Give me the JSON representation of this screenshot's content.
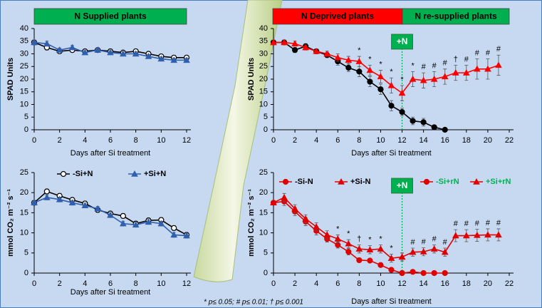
{
  "chart_data": [
    {
      "type": "line",
      "ylabel": "SPAD Units",
      "xlabel": "Days after Si treatment",
      "xlim": [
        0,
        12
      ],
      "xticks": [
        0,
        2,
        4,
        6,
        8,
        10,
        12
      ],
      "ylim": [
        0,
        40
      ],
      "yticks": [
        0,
        5,
        10,
        15,
        20,
        25,
        30,
        35,
        40
      ],
      "grid": false,
      "banners": [
        {
          "text": "N Supplied plants",
          "color": "#00b050"
        }
      ],
      "series": [
        {
          "color": "#000000",
          "marker": "circle",
          "marker_fill": "#ffffff",
          "x": [
            0,
            1,
            2,
            3,
            4,
            5,
            6,
            7,
            8,
            9,
            10,
            11,
            12
          ],
          "values": [
            34.5,
            32.5,
            31,
            31.5,
            31,
            31.5,
            31,
            30.5,
            31,
            30,
            29,
            28.5,
            28.5
          ],
          "errors": [
            1,
            1,
            0.8,
            0.8,
            0.8,
            0.8,
            0.8,
            0.8,
            0.8,
            0.8,
            0.8,
            0.8,
            0.8
          ]
        },
        {
          "color": "#2e5fb0",
          "marker": "triangle",
          "marker_fill": "#2e5fb0",
          "x": [
            0,
            1,
            2,
            3,
            4,
            5,
            6,
            7,
            8,
            9,
            10,
            11,
            12
          ],
          "values": [
            34.5,
            34,
            31.5,
            32.5,
            30.5,
            31.5,
            30.5,
            30,
            30,
            29,
            28,
            27.5,
            27.5
          ],
          "errors": [
            1,
            1,
            0.8,
            0.8,
            0.8,
            0.8,
            0.8,
            0.8,
            0.8,
            0.8,
            0.8,
            0.8,
            0.8
          ]
        }
      ]
    },
    {
      "type": "line",
      "ylabel": "SPAD Units",
      "xlabel": "Days after Si treatment",
      "xlim": [
        0,
        22
      ],
      "xticks": [
        0,
        2,
        4,
        6,
        8,
        10,
        12,
        14,
        16,
        18,
        20,
        22
      ],
      "ylim": [
        0,
        40
      ],
      "yticks": [
        0,
        5,
        10,
        15,
        20,
        25,
        30,
        35,
        40
      ],
      "grid": false,
      "banners": [
        {
          "text": "N Deprived plants",
          "color": "#ff0000"
        },
        {
          "text": "N re-supplied plants",
          "color": "#00b050"
        }
      ],
      "resupply": {
        "x": 12,
        "label": "+N",
        "color": "#00b050"
      },
      "series": [
        {
          "color": "#000000",
          "marker": "circle",
          "marker_fill": "#000000",
          "x": [
            0,
            1,
            2,
            3,
            4,
            5,
            6,
            7,
            8,
            9,
            10,
            11,
            12,
            13,
            14,
            15,
            16
          ],
          "values": [
            34.5,
            34.5,
            31.5,
            33,
            31,
            29.5,
            27,
            24.5,
            23,
            19,
            16,
            9.5,
            7,
            3.5,
            3,
            1,
            0
          ],
          "errors": [
            1,
            1,
            1,
            1,
            1,
            1,
            1.5,
            1.5,
            2,
            2,
            2,
            2,
            1.5,
            1.5,
            1.5,
            0.5,
            0.3
          ]
        },
        {
          "color": "#ff0000",
          "marker": "triangle",
          "marker_fill": "#ff0000",
          "x": [
            0,
            1,
            2,
            3,
            4,
            5,
            6,
            7,
            8,
            9,
            10,
            11,
            12,
            13,
            14,
            15,
            16,
            17,
            18,
            19,
            20,
            21
          ],
          "values": [
            34.5,
            34.5,
            34,
            32.5,
            31,
            30,
            28.5,
            27.5,
            27,
            23.5,
            21,
            17.5,
            14.5,
            20,
            19.5,
            20,
            21,
            22.5,
            22.5,
            24,
            24,
            25.5
          ],
          "errors": [
            1,
            1,
            1,
            1,
            1,
            1,
            1.5,
            1.5,
            2,
            2,
            2.5,
            3,
            3,
            3,
            3,
            3,
            3,
            3,
            3,
            4,
            4,
            4
          ]
        }
      ],
      "annotations": [
        {
          "x": 8,
          "text": "*"
        },
        {
          "x": 9,
          "text": "*"
        },
        {
          "x": 10,
          "text": "*"
        },
        {
          "x": 11,
          "text": "*"
        },
        {
          "x": 12,
          "text": "*"
        },
        {
          "x": 13,
          "text": "*"
        },
        {
          "x": 14,
          "text": "#"
        },
        {
          "x": 15,
          "text": "#"
        },
        {
          "x": 16,
          "text": "#"
        },
        {
          "x": 17,
          "text": "†"
        },
        {
          "x": 18,
          "text": "#"
        },
        {
          "x": 19,
          "text": "#"
        },
        {
          "x": 20,
          "text": "#"
        },
        {
          "x": 21,
          "text": "#"
        }
      ]
    },
    {
      "type": "line",
      "ylabel": "mmol CO₂ m⁻² s⁻¹",
      "xlabel": "Days after Si treatment",
      "xlim": [
        0,
        12
      ],
      "xticks": [
        0,
        2,
        4,
        6,
        8,
        10,
        12
      ],
      "ylim": [
        0,
        25
      ],
      "yticks": [
        0,
        5,
        10,
        15,
        20,
        25
      ],
      "grid": false,
      "legend": "top",
      "series": [
        {
          "name": "-Si+N",
          "color": "#000000",
          "marker": "circle",
          "marker_fill": "#ffffff",
          "x": [
            0,
            1,
            2,
            3,
            4,
            5,
            6,
            7,
            8,
            9,
            10,
            11,
            12
          ],
          "values": [
            17.5,
            20.3,
            19.2,
            18.2,
            17.3,
            15.7,
            14.8,
            14.2,
            12.3,
            13.1,
            13.2,
            11.2,
            9.5
          ],
          "errors": [
            0.6,
            0.6,
            0.6,
            0.6,
            0.6,
            0.6,
            0.6,
            0.6,
            0.6,
            0.6,
            0.6,
            0.6,
            0.6
          ]
        },
        {
          "name": "+Si+N",
          "color": "#2e5fb0",
          "marker": "triangle",
          "marker_fill": "#2e5fb0",
          "x": [
            0,
            1,
            2,
            3,
            4,
            5,
            6,
            7,
            8,
            9,
            10,
            11,
            12
          ],
          "values": [
            17.5,
            18.8,
            18.3,
            17.5,
            16.8,
            16,
            14.4,
            12.3,
            12,
            12.7,
            12.3,
            9.5,
            9.3
          ],
          "errors": [
            0.6,
            0.6,
            0.6,
            0.6,
            0.6,
            0.6,
            0.6,
            0.6,
            0.6,
            0.6,
            0.6,
            0.6,
            0.6
          ]
        }
      ]
    },
    {
      "type": "line",
      "ylabel": "mmol CO₂ m⁻² s⁻¹",
      "xlabel": "Days after Si treatment",
      "xlim": [
        0,
        22
      ],
      "xticks": [
        0,
        2,
        4,
        6,
        8,
        10,
        12,
        14,
        16,
        18,
        20,
        22
      ],
      "ylim": [
        0,
        25
      ],
      "yticks": [
        0,
        5,
        10,
        15,
        20,
        25
      ],
      "grid": false,
      "legend": "top",
      "resupply": {
        "x": 12,
        "label": "+N",
        "color": "#00b050"
      },
      "series": [
        {
          "name": "-Si-N",
          "color": "#e00000",
          "legend_text_color": "#000000",
          "marker": "circle",
          "marker_fill": "#e00000",
          "x": [
            0,
            1,
            2,
            3,
            4,
            5,
            6,
            7,
            8,
            9,
            10,
            11,
            12
          ],
          "values": [
            17.5,
            17.8,
            15.3,
            12.8,
            10.5,
            8.5,
            7,
            5.3,
            3.2,
            3.1,
            2,
            0.8,
            0
          ],
          "errors": [
            0.5,
            1,
            1,
            1,
            1,
            0.8,
            0.8,
            0.8,
            0.5,
            0.5,
            0.5,
            0.5,
            0.3
          ]
        },
        {
          "name": "+Si-N",
          "color": "#e00000",
          "legend_text_color": "#000000",
          "marker": "triangle",
          "marker_fill": "#e00000",
          "x": [
            0,
            1,
            2,
            3,
            4,
            5,
            6,
            7,
            8,
            9,
            10,
            11,
            12
          ],
          "values": [
            17.5,
            18.8,
            16,
            13.5,
            11.5,
            9.5,
            8.5,
            7.3,
            6,
            5.8,
            6,
            3.7,
            4
          ],
          "errors": [
            0.5,
            1,
            1,
            1,
            1,
            1,
            1,
            1,
            1,
            1,
            1,
            1,
            1
          ]
        },
        {
          "name": "-Si+rN",
          "color": "#e00000",
          "legend_text_color": "#00b050",
          "marker": "circle",
          "marker_fill": "#e00000",
          "x": [
            12,
            13,
            14,
            15,
            16
          ],
          "values": [
            0,
            0.3,
            0,
            0,
            0
          ],
          "errors": [
            0.3,
            0.3,
            0.2,
            0.2,
            0.2
          ]
        },
        {
          "name": "+Si+rN",
          "color": "#e00000",
          "legend_text_color": "#00b050",
          "marker": "triangle",
          "marker_fill": "#e00000",
          "x": [
            12,
            13,
            14,
            15,
            16,
            17,
            18,
            19,
            20,
            21
          ],
          "values": [
            4,
            5.2,
            5.3,
            6,
            5.2,
            9.3,
            9.3,
            9.4,
            9.5,
            9.5
          ],
          "errors": [
            1,
            1,
            1,
            1,
            1,
            1.5,
            1.5,
            1.5,
            1.5,
            1.5
          ]
        }
      ],
      "annotations": [
        {
          "x": 6,
          "text": "*"
        },
        {
          "x": 7,
          "text": "*"
        },
        {
          "x": 8,
          "text": "†"
        },
        {
          "x": 9,
          "text": "*"
        },
        {
          "x": 10,
          "text": "*"
        },
        {
          "x": 11,
          "text": "*"
        },
        {
          "x": 13,
          "text": "#"
        },
        {
          "x": 14,
          "text": "#"
        },
        {
          "x": 15,
          "text": "#"
        },
        {
          "x": 16,
          "text": "#"
        },
        {
          "x": 17,
          "text": "#"
        },
        {
          "x": 18,
          "text": "#"
        },
        {
          "x": 19,
          "text": "#"
        },
        {
          "x": 20,
          "text": "#"
        },
        {
          "x": 21,
          "text": "#"
        }
      ]
    }
  ],
  "footnote": "* p≤ 0.05; # p≤ 0.01; † p≤ 0.001"
}
